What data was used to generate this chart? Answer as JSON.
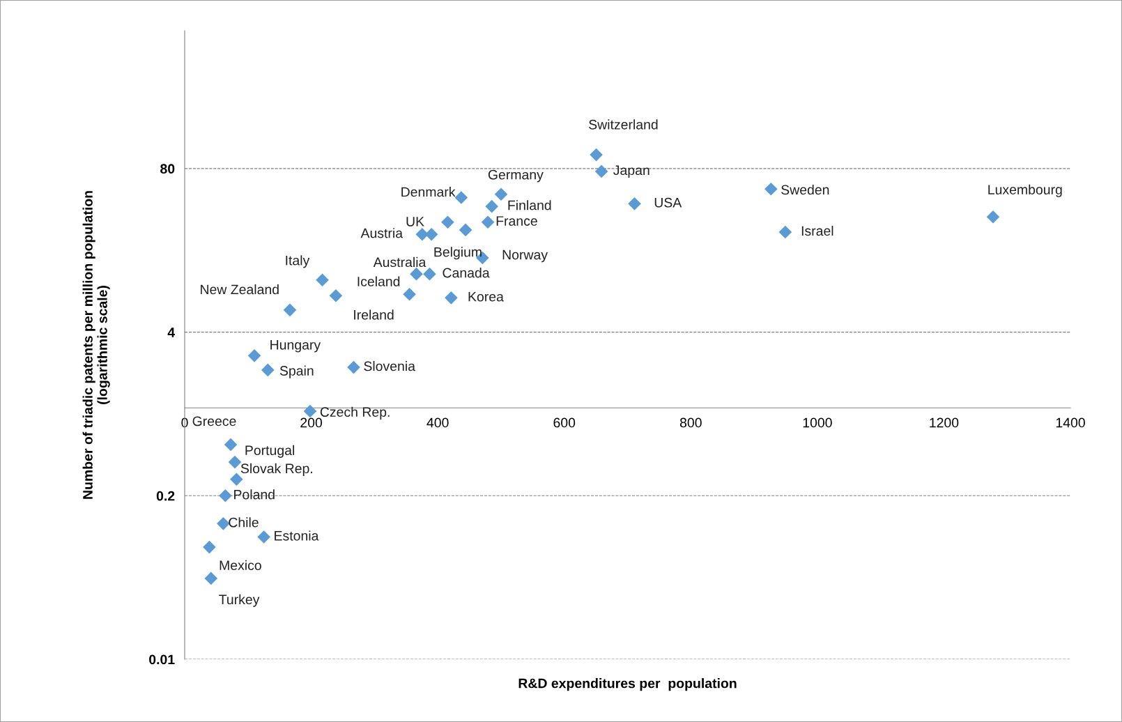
{
  "chart_data": {
    "type": "scatter",
    "xlabel": "R&D expenditures per  population",
    "ylabel": "Number of triadic patents per million population\n(logarithmic scale)",
    "log": "y",
    "xlim": [
      0,
      1400
    ],
    "xticks": [
      0,
      200,
      400,
      600,
      800,
      1000,
      1200,
      1400
    ],
    "ylim": [
      0.01,
      1000
    ],
    "yticks": [
      0.01,
      0.2,
      4,
      80
    ],
    "grid": "y",
    "marker": "diamond",
    "legend": false,
    "series": [
      {
        "color": "#5b9bd5",
        "x": [
          650.5,
          658.8,
          500.1,
          485.4,
          437.1,
          415.7,
          444.0,
          479.2,
          375.4,
          390.1,
          470.7,
          366.2,
          387.1,
          217.6,
          238.9,
          355.3,
          421.2,
          166.3,
          711.0,
          926.7,
          949.3,
          1277.7,
          110.2,
          131.4,
          267.1,
          198.2,
          72.8,
          79.3,
          81.9,
          64.3,
          61.0,
          125.2,
          39.0,
          41.6
        ],
        "values": [
          103,
          76,
          50,
          40,
          47,
          30,
          26,
          30,
          24,
          24,
          15.6,
          11.6,
          11.6,
          10.4,
          7.8,
          8.0,
          7.5,
          6.0,
          42,
          55,
          25,
          33,
          2.6,
          2.0,
          2.1,
          0.94,
          0.51,
          0.37,
          0.27,
          0.2,
          0.12,
          0.094,
          0.078,
          0.044
        ]
      }
    ],
    "annotations": [
      {
        "text": "Switzerland",
        "x": 650.5,
        "y": 103
      },
      {
        "text": "Japan",
        "x": 658.8,
        "y": 76
      },
      {
        "text": "Germany",
        "x": 500.1,
        "y": 50
      },
      {
        "text": "Finland",
        "x": 485.4,
        "y": 40
      },
      {
        "text": "Denmark",
        "x": 415.7,
        "y": 30
      },
      {
        "text": "Belgium",
        "x": 444.0,
        "y": 26
      },
      {
        "text": "France",
        "x": 479.2,
        "y": 30
      },
      {
        "text": "Austria",
        "x": 375.4,
        "y": 24
      },
      {
        "text": "UK",
        "x": 390.1,
        "y": 24
      },
      {
        "text": "Norway",
        "x": 470.7,
        "y": 15.6
      },
      {
        "text": "Australia",
        "x": 366.2,
        "y": 11.6
      },
      {
        "text": "Canada",
        "x": 387.1,
        "y": 11.6
      },
      {
        "text": "Italy",
        "x": 217.6,
        "y": 10.4
      },
      {
        "text": "Ireland",
        "x": 238.9,
        "y": 7.8
      },
      {
        "text": "Iceland",
        "x": 355.3,
        "y": 8.0
      },
      {
        "text": "Korea",
        "x": 421.2,
        "y": 7.5
      },
      {
        "text": "New Zealand",
        "x": 166.3,
        "y": 6.0
      },
      {
        "text": "USA",
        "x": 711.0,
        "y": 42
      },
      {
        "text": "Sweden",
        "x": 926.7,
        "y": 55
      },
      {
        "text": "Israel",
        "x": 949.3,
        "y": 25
      },
      {
        "text": "Luxembourg",
        "x": 1277.7,
        "y": 33
      },
      {
        "text": "Hungary",
        "x": 110.2,
        "y": 2.6
      },
      {
        "text": "Spain",
        "x": 131.4,
        "y": 2.0
      },
      {
        "text": "Slovenia",
        "x": 267.1,
        "y": 2.1
      },
      {
        "text": "Czech Rep.",
        "x": 198.2,
        "y": 0.94
      },
      {
        "text": "Greece",
        "x": 72.8,
        "y": 0.51
      },
      {
        "text": "Portugal",
        "x": 79.3,
        "y": 0.37
      },
      {
        "text": "Slovak Rep.",
        "x": 81.9,
        "y": 0.27
      },
      {
        "text": "Poland",
        "x": 64.3,
        "y": 0.2
      },
      {
        "text": "Chile",
        "x": 61.0,
        "y": 0.12
      },
      {
        "text": "Estonia",
        "x": 125.2,
        "y": 0.094
      },
      {
        "text": "Mexico",
        "x": 39.0,
        "y": 0.078
      },
      {
        "text": "Turkey",
        "x": 41.6,
        "y": 0.044
      }
    ]
  }
}
